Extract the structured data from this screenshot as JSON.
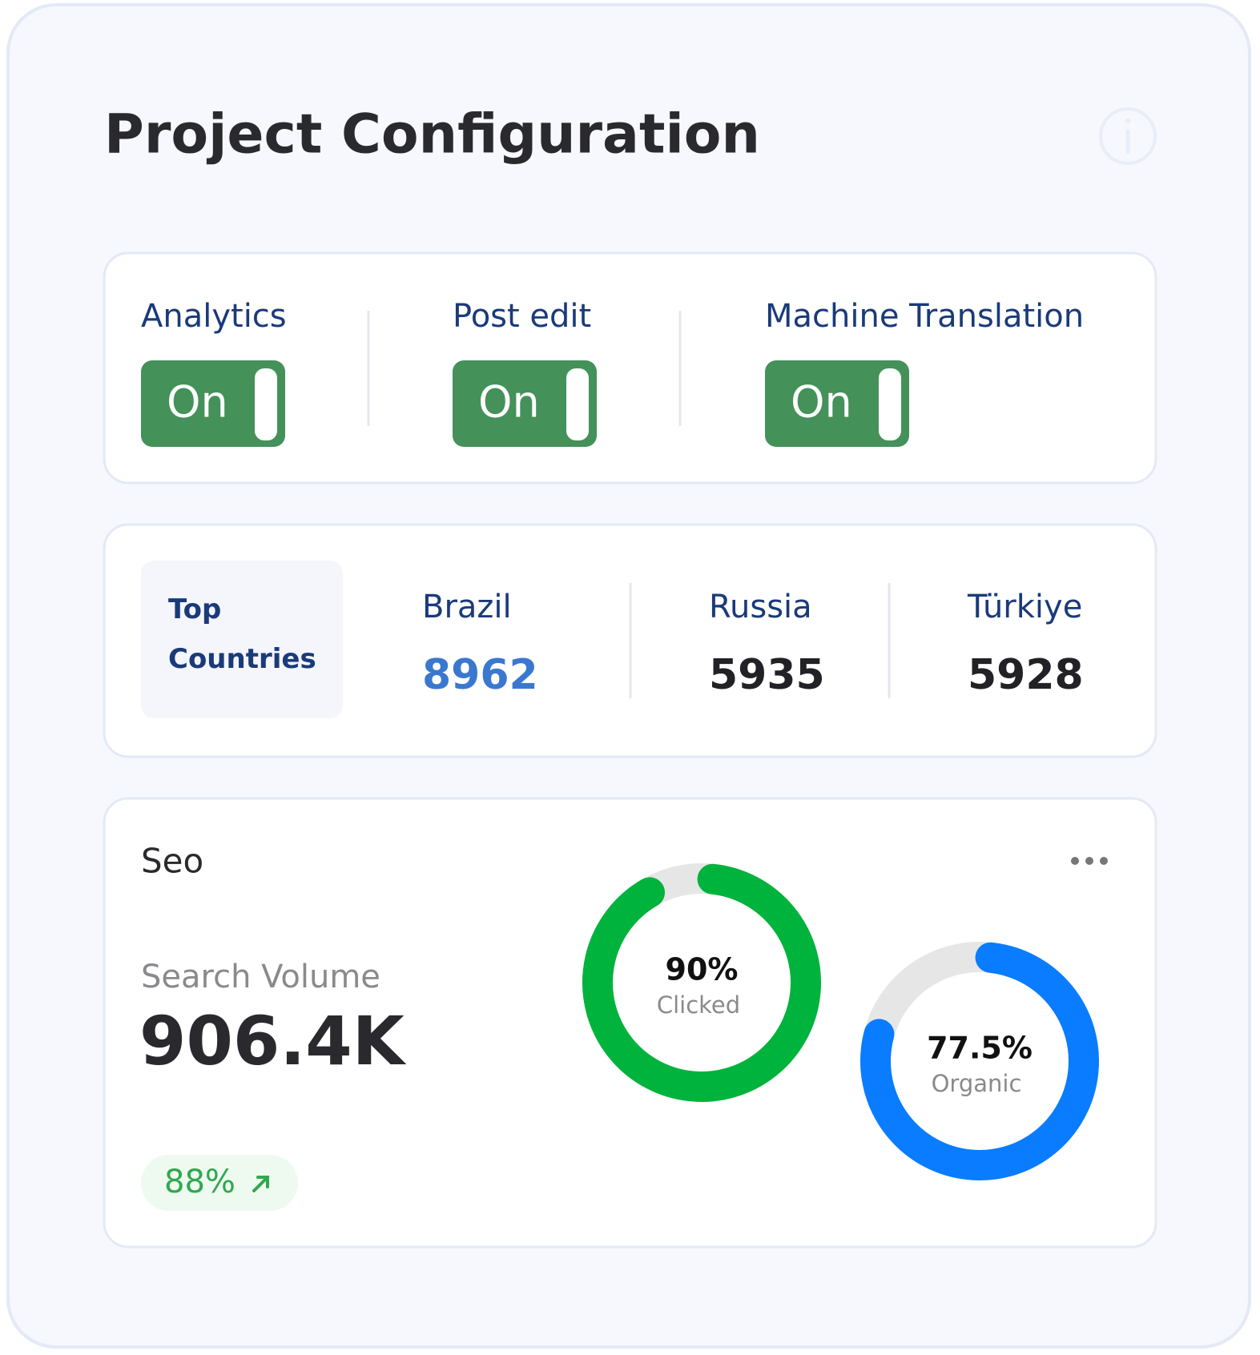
{
  "header": {
    "title": "Project Configuration"
  },
  "toggles": [
    {
      "label": "Analytics",
      "state": "On"
    },
    {
      "label": "Post edit",
      "state": "On"
    },
    {
      "label": "Machine Translation",
      "state": "On"
    }
  ],
  "top_countries": {
    "label": "Top Countries",
    "countries": [
      {
        "name": "Brazil",
        "value": "8962"
      },
      {
        "name": "Russia",
        "value": "5935"
      },
      {
        "name": "Türkiye",
        "value": "5928"
      }
    ]
  },
  "seo": {
    "title": "Seo",
    "metric_label": "Search Volume",
    "metric_value": "906.4K",
    "change": "88%",
    "donuts": [
      {
        "value": 90,
        "value_label": "90%",
        "label": "Clicked",
        "color": "#00b33c"
      },
      {
        "value": 77.5,
        "value_label": "77.5%",
        "label": "Organic",
        "color": "#0a7cff"
      }
    ]
  }
}
